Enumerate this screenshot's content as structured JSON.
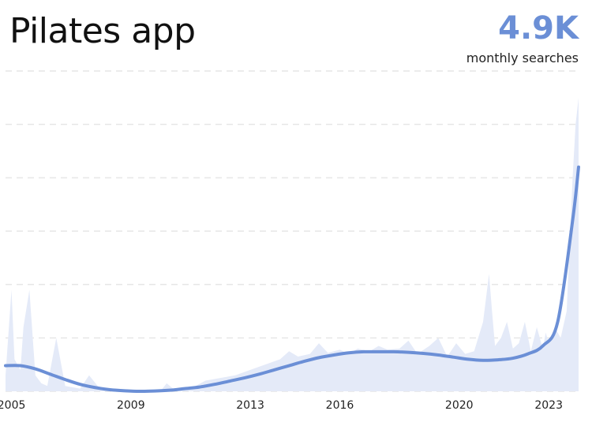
{
  "header": {
    "title": "Pilates app",
    "metric_value": "4.9K",
    "metric_label": "monthly searches"
  },
  "colors": {
    "accent": "#6b8fd6",
    "area": "#e4eaf8",
    "grid": "#e6e6e6",
    "text": "#111111"
  },
  "chart_data": {
    "type": "area",
    "title": "Pilates app",
    "xlabel": "",
    "ylabel": "",
    "xlim": [
      2004.8,
      2024.0
    ],
    "ylim": [
      0,
      6000
    ],
    "grid": true,
    "x_ticks": [
      "2005",
      "2009",
      "2013",
      "2016",
      "2020",
      "2023"
    ],
    "x_tick_values": [
      2005,
      2009,
      2013,
      2016,
      2020,
      2023
    ],
    "series": [
      {
        "kind": "area",
        "x": [
          2004.8,
          2005.0,
          2005.1,
          2005.3,
          2005.4,
          2005.6,
          2005.8,
          2006.0,
          2006.2,
          2006.5,
          2006.8,
          2007.0,
          2007.3,
          2007.6,
          2008.0,
          2008.4,
          2008.8,
          2009.2,
          2009.6,
          2010.0,
          2010.2,
          2010.5,
          2011.0,
          2011.5,
          2012.0,
          2012.5,
          2013.0,
          2013.5,
          2014.0,
          2014.3,
          2014.6,
          2015.0,
          2015.3,
          2015.6,
          2016.0,
          2016.3,
          2016.6,
          2017.0,
          2017.3,
          2017.6,
          2018.0,
          2018.3,
          2018.6,
          2019.0,
          2019.3,
          2019.6,
          2019.9,
          2020.2,
          2020.5,
          2020.8,
          2021.0,
          2021.1,
          2021.2,
          2021.4,
          2021.6,
          2021.8,
          2022.0,
          2022.2,
          2022.4,
          2022.6,
          2022.8,
          2022.9,
          2023.0,
          2023.2,
          2023.4,
          2023.6,
          2023.8,
          2023.9,
          2024.0
        ],
        "y": [
          300,
          1900,
          600,
          400,
          1200,
          1900,
          300,
          150,
          100,
          1000,
          100,
          80,
          50,
          300,
          20,
          10,
          5,
          20,
          5,
          10,
          150,
          10,
          50,
          200,
          250,
          300,
          400,
          500,
          600,
          750,
          650,
          700,
          900,
          720,
          780,
          700,
          800,
          750,
          850,
          780,
          800,
          950,
          700,
          850,
          1000,
          650,
          900,
          700,
          750,
          1300,
          2200,
          1500,
          850,
          1000,
          1300,
          800,
          900,
          1300,
          750,
          1200,
          800,
          1100,
          900,
          1200,
          1000,
          1500,
          4000,
          5000,
          5500
        ]
      },
      {
        "kind": "trend",
        "x": [
          2004.8,
          2005.3,
          2005.8,
          2006.3,
          2006.8,
          2007.3,
          2007.8,
          2008.3,
          2008.8,
          2009.3,
          2009.8,
          2010.3,
          2010.8,
          2011.3,
          2011.8,
          2012.3,
          2012.8,
          2013.3,
          2013.8,
          2014.3,
          2014.8,
          2015.3,
          2015.8,
          2016.3,
          2016.8,
          2017.3,
          2017.8,
          2018.3,
          2018.8,
          2019.3,
          2019.8,
          2020.3,
          2020.8,
          2021.3,
          2021.8,
          2022.3,
          2022.8,
          2023.3,
          2023.8,
          2024.0
        ],
        "y": [
          480,
          480,
          420,
          320,
          220,
          130,
          70,
          30,
          10,
          0,
          5,
          20,
          50,
          80,
          130,
          190,
          250,
          320,
          400,
          480,
          560,
          630,
          680,
          720,
          740,
          740,
          740,
          730,
          710,
          680,
          640,
          600,
          580,
          590,
          620,
          700,
          850,
          1300,
          3200,
          4200
        ]
      }
    ]
  }
}
